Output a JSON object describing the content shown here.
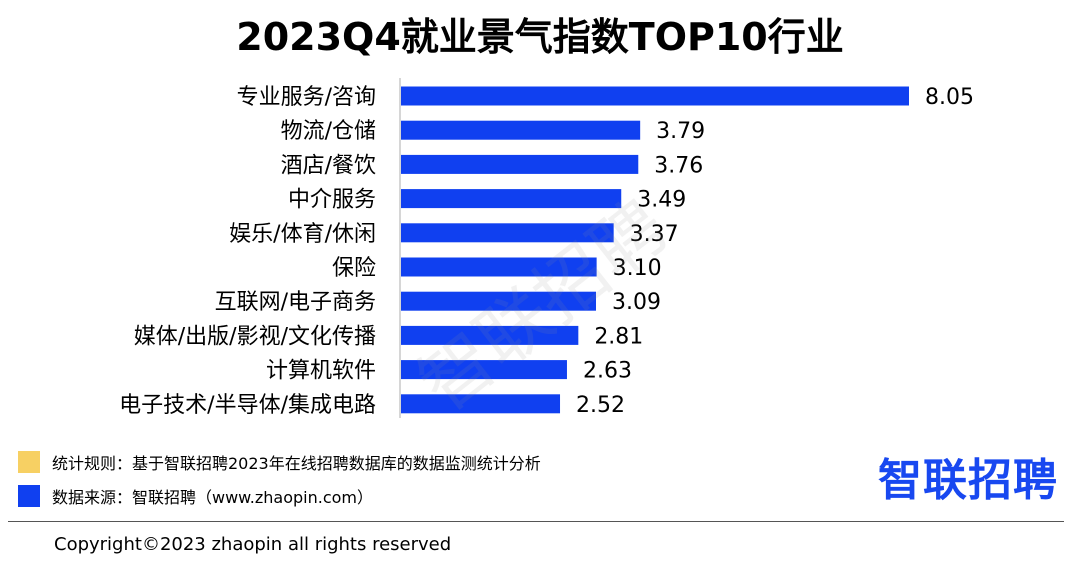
{
  "colors": {
    "bar": "#1040f0",
    "rule_swatch": "#f7d063",
    "source_swatch": "#1040f0",
    "brand": "#1848f0",
    "axis": "#c8c8c8"
  },
  "chart_data": {
    "type": "bar",
    "orientation": "horizontal",
    "title": "2023Q4就业景气指数TOP10行业",
    "categories": [
      "专业服务/咨询",
      "物流/仓储",
      "酒店/餐饮",
      "中介服务",
      "娱乐/体育/休闲",
      "保险",
      "互联网/电子商务",
      "媒体/出版/影视/文化传播",
      "计算机软件",
      "电子技术/半导体/集成电路"
    ],
    "values": [
      8.05,
      3.79,
      3.76,
      3.49,
      3.37,
      3.1,
      3.09,
      2.81,
      2.63,
      2.52
    ],
    "value_labels": [
      "8.05",
      "3.79",
      "3.76",
      "3.49",
      "3.37",
      "3.10",
      "3.09",
      "2.81",
      "2.63",
      "2.52"
    ],
    "xlim": [
      0,
      8.05
    ],
    "grid": false
  },
  "watermark": "智联招聘",
  "legend": {
    "rule_text": "统计规则：基于智联招聘2023年在线招聘数据库的数据监测统计分析",
    "source_text": "数据来源：智联招聘（www.zhaopin.com）"
  },
  "brand": "智联招聘",
  "copyright": "Copyright©2023 zhaopin all rights reserved"
}
